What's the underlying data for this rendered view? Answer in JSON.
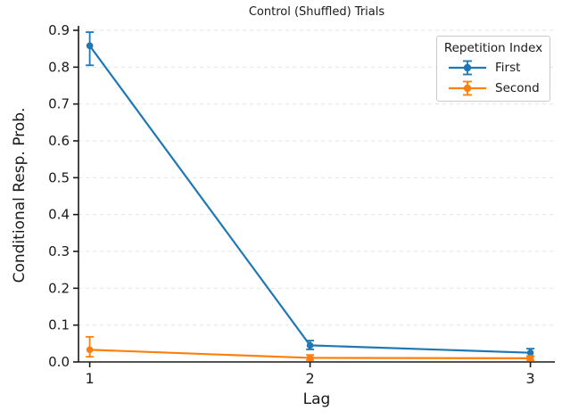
{
  "chart_data": {
    "type": "line",
    "title": "Control (Shuffled) Trials",
    "xlabel": "Lag",
    "ylabel": "Conditional Resp. Prob.",
    "x": [
      1,
      2,
      3
    ],
    "xtick_labels": [
      "1",
      "2",
      "3"
    ],
    "ytick_step": 0.1,
    "ylim": [
      0.0,
      0.9
    ],
    "xlim": [
      0.949,
      3.111
    ],
    "grid": "horizontal-dashed",
    "grid_color": "#e4e4e4",
    "spine_color": "#1a1a1a",
    "legend": {
      "title": "Repetition Index",
      "position": "upper-right"
    },
    "series": [
      {
        "name": "First",
        "color": "#1f77b4",
        "marker": "circle-errorbar",
        "values": [
          0.858,
          0.045,
          0.025
        ],
        "err_low": [
          0.805,
          0.034,
          0.016
        ],
        "err_high": [
          0.895,
          0.058,
          0.036
        ]
      },
      {
        "name": "Second",
        "color": "#ff7f0e",
        "marker": "circle-errorbar",
        "values": [
          0.033,
          0.011,
          0.01
        ],
        "err_low": [
          0.014,
          0.005,
          0.004
        ],
        "err_high": [
          0.068,
          0.019,
          0.016
        ]
      }
    ]
  }
}
